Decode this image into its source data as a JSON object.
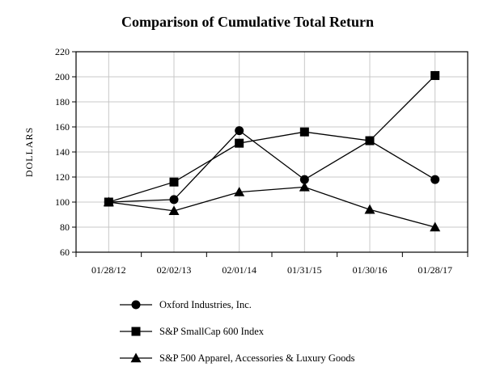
{
  "chart_data": {
    "type": "line",
    "title": "Comparison of Cumulative Total Return",
    "xlabel": "",
    "ylabel": "DOLLARS",
    "ylim": [
      60,
      220
    ],
    "yticks": [
      60,
      80,
      100,
      120,
      140,
      160,
      180,
      200,
      220
    ],
    "categories": [
      "01/28/12",
      "02/02/13",
      "02/01/14",
      "01/31/15",
      "01/30/16",
      "01/28/17"
    ],
    "grid": true,
    "legend_position": "bottom",
    "colors": {
      "line": "#000000",
      "grid": "#c8c8c8",
      "axis": "#000000"
    },
    "series": [
      {
        "name": "Oxford Industries, Inc.",
        "marker": "circle",
        "values": [
          100,
          102,
          157,
          118,
          149,
          118
        ]
      },
      {
        "name": "S&P SmallCap 600 Index",
        "marker": "square",
        "values": [
          100,
          116,
          147,
          156,
          149,
          201
        ]
      },
      {
        "name": "S&P 500 Apparel, Accessories & Luxury Goods",
        "marker": "triangle",
        "values": [
          100,
          93,
          108,
          112,
          94,
          80
        ]
      }
    ]
  }
}
